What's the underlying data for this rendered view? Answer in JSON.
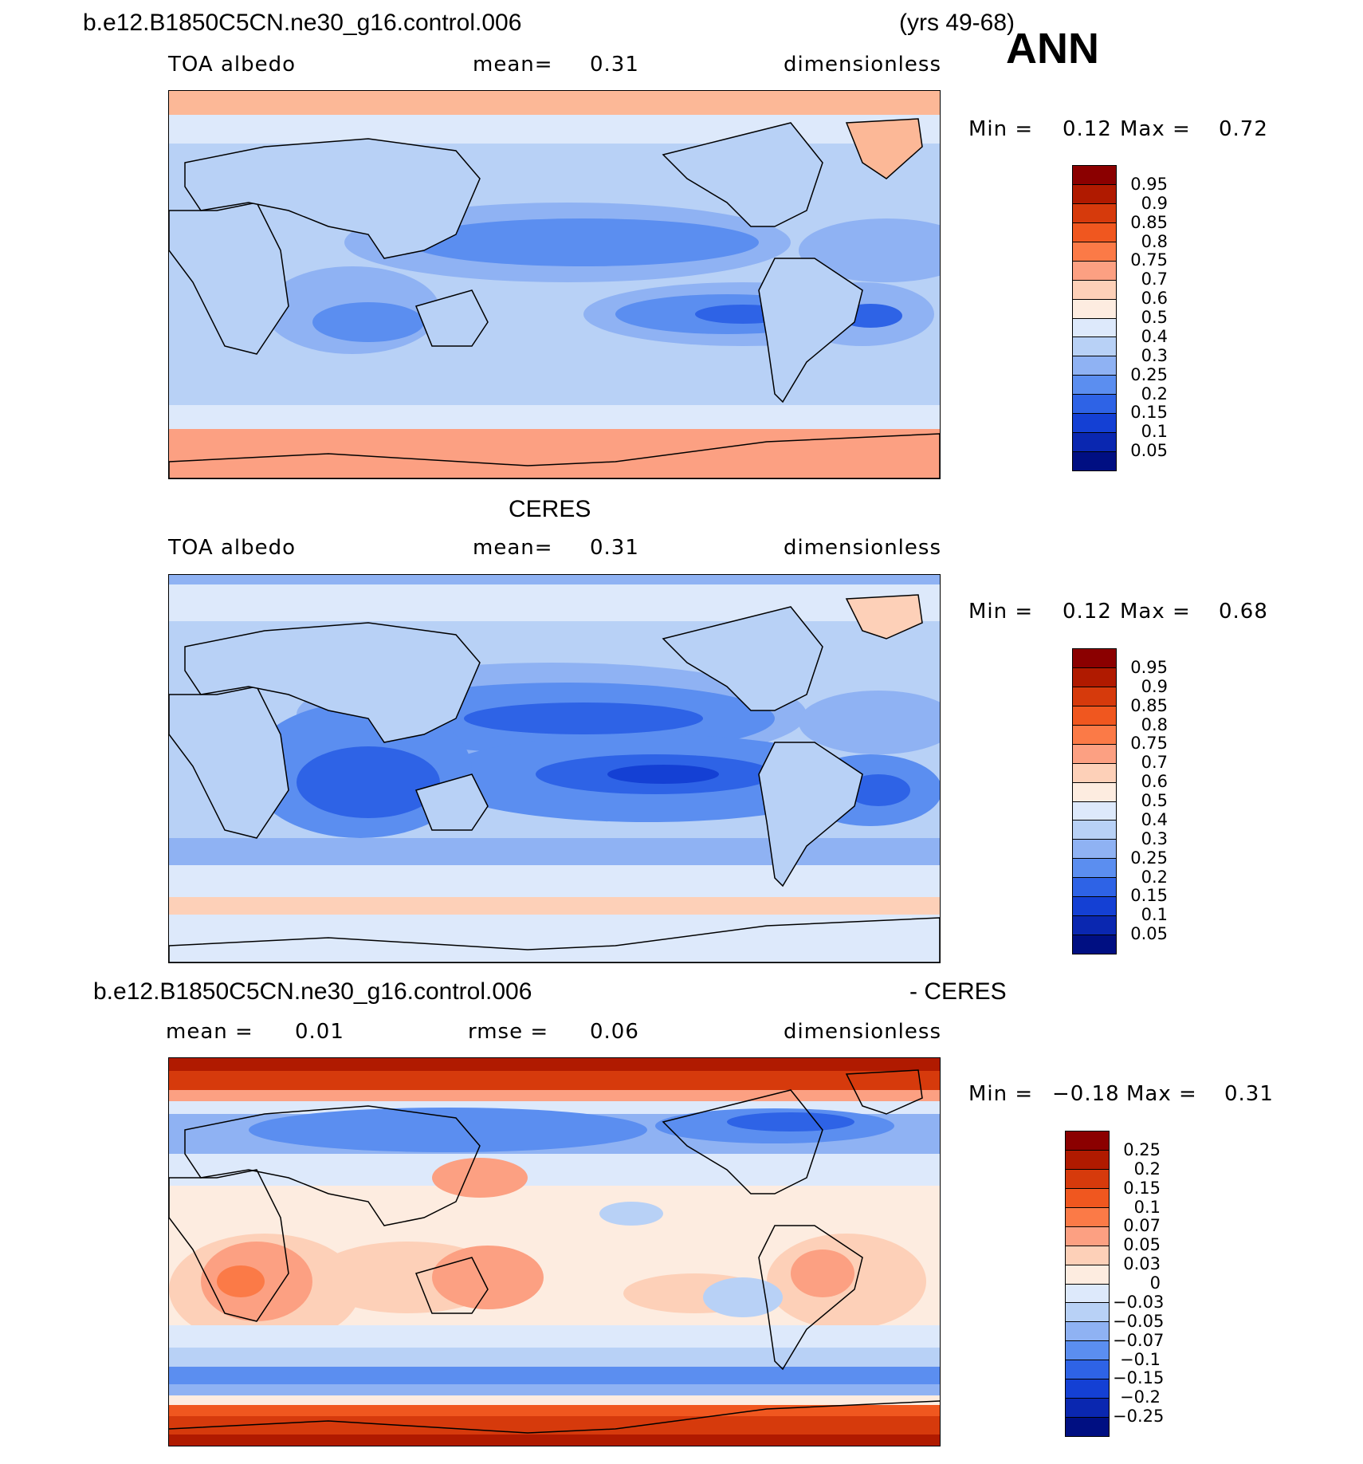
{
  "run_title": "b.e12.B1850C5CN.ne30_g16.control.006",
  "years": "(yrs 49-68)",
  "season": "ANN",
  "panel1": {
    "field": "TOA  albedo",
    "mean_label": "mean=",
    "mean_value": "0.31",
    "units": "dimensionless",
    "min_label": "Min =",
    "min_value": "0.12",
    "max_label": "Max =",
    "max_value": "0.72",
    "levels": [
      "0.95",
      "0.9",
      "0.85",
      "0.8",
      "0.75",
      "0.7",
      "0.6",
      "0.5",
      "0.4",
      "0.3",
      "0.25",
      "0.2",
      "0.15",
      "0.1",
      "0.05"
    ]
  },
  "panel2": {
    "title": "CERES",
    "field": "TOA  albedo",
    "mean_label": "mean=",
    "mean_value": "0.31",
    "units": "dimensionless",
    "min_label": "Min =",
    "min_value": "0.12",
    "max_label": "Max =",
    "max_value": "0.68",
    "levels": [
      "0.95",
      "0.9",
      "0.85",
      "0.8",
      "0.75",
      "0.7",
      "0.6",
      "0.5",
      "0.4",
      "0.3",
      "0.25",
      "0.2",
      "0.15",
      "0.1",
      "0.05"
    ]
  },
  "panel3": {
    "title_left": "b.e12.B1850C5CN.ne30_g16.control.006",
    "title_right": "- CERES",
    "mean_label": "mean  =",
    "mean_value": "0.01",
    "rmse_label": "rmse  =",
    "rmse_value": "0.06",
    "units": "dimensionless",
    "min_label": "Min =",
    "min_value": "−0.18",
    "max_label": "Max =",
    "max_value": "0.31",
    "levels": [
      "0.25",
      "0.2",
      "0.15",
      "0.1",
      "0.07",
      "0.05",
      "0.03",
      "0",
      "−0.03",
      "−0.05",
      "−0.07",
      "−0.1",
      "−0.15",
      "−0.2",
      "−0.25"
    ]
  },
  "colors": {
    "abs_scale": [
      "#8b0000",
      "#b01a00",
      "#d63a0c",
      "#f0571f",
      "#fb7a47",
      "#fca082",
      "#fdd0b8",
      "#fdece0",
      "#dde9fb",
      "#b8d1f6",
      "#8fb2f3",
      "#5b8ef0",
      "#2e63e6",
      "#1440d4",
      "#0a27b0",
      "#000f82"
    ],
    "diff_scale": [
      "#8b0000",
      "#b01a00",
      "#d63a0c",
      "#f0571f",
      "#fb7a47",
      "#fca082",
      "#fdd0b8",
      "#fdece0",
      "#dde9fb",
      "#b8d1f6",
      "#8fb2f3",
      "#5b8ef0",
      "#2e63e6",
      "#1440d4",
      "#0a27b0",
      "#000f82"
    ]
  }
}
